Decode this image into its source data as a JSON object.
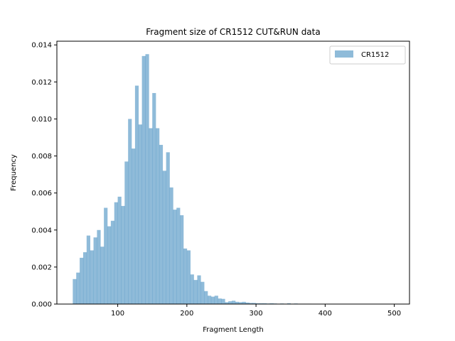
{
  "chart_data": {
    "type": "bar",
    "title": "Fragment size of CR1512 CUT&RUN data",
    "xlabel": "Fragment Length",
    "ylabel": "Frequency",
    "xlim": [
      12,
      522
    ],
    "ylim": [
      0,
      0.0142
    ],
    "xticks": [
      100,
      200,
      300,
      400,
      500
    ],
    "xtick_labels": [
      "100",
      "200",
      "300",
      "400",
      "500"
    ],
    "yticks": [
      0,
      0.002,
      0.004,
      0.006,
      0.008,
      0.01,
      0.012,
      0.014
    ],
    "ytick_labels": [
      "0.000",
      "0.002",
      "0.004",
      "0.006",
      "0.008",
      "0.010",
      "0.012",
      "0.014"
    ],
    "legend": {
      "position": "top-right",
      "entries": [
        "CR1512"
      ]
    },
    "series": [
      {
        "name": "CR1512",
        "color": "#1f77b4",
        "alpha": 0.5,
        "bin_width": 5,
        "bin_start": 35,
        "values": [
          0.00135,
          0.0017,
          0.0025,
          0.0028,
          0.0037,
          0.0029,
          0.0036,
          0.004,
          0.0031,
          0.0052,
          0.0042,
          0.0045,
          0.0055,
          0.0058,
          0.0053,
          0.0077,
          0.01,
          0.0084,
          0.0118,
          0.0097,
          0.0134,
          0.0135,
          0.0095,
          0.0114,
          0.0095,
          0.0086,
          0.0072,
          0.0082,
          0.0063,
          0.0051,
          0.0052,
          0.0048,
          0.003,
          0.0029,
          0.0016,
          0.0013,
          0.00155,
          0.0012,
          0.0007,
          0.00045,
          0.0004,
          0.00045,
          0.0003,
          0.00028,
          0.0001,
          0.00015,
          0.00018,
          0.00012,
          0.0001,
          0.00012,
          8e-05,
          6e-05,
          6e-05,
          4e-05,
          4e-05,
          4e-05,
          3e-05,
          4e-05,
          3e-05,
          2e-05,
          3e-05,
          2e-05,
          4e-05,
          2e-05,
          3e-05,
          2e-05,
          2e-05,
          2e-05,
          2e-05,
          1e-05,
          1e-05,
          1e-05,
          1e-05,
          1e-05,
          1e-05,
          1e-05,
          1e-05,
          1e-05,
          1e-05,
          1e-05,
          1e-05,
          1e-05,
          1e-05,
          1e-05,
          1e-05,
          1e-05,
          1e-05,
          1e-05,
          1e-05,
          1e-05,
          1e-05,
          1e-05,
          1e-05
        ]
      }
    ]
  }
}
